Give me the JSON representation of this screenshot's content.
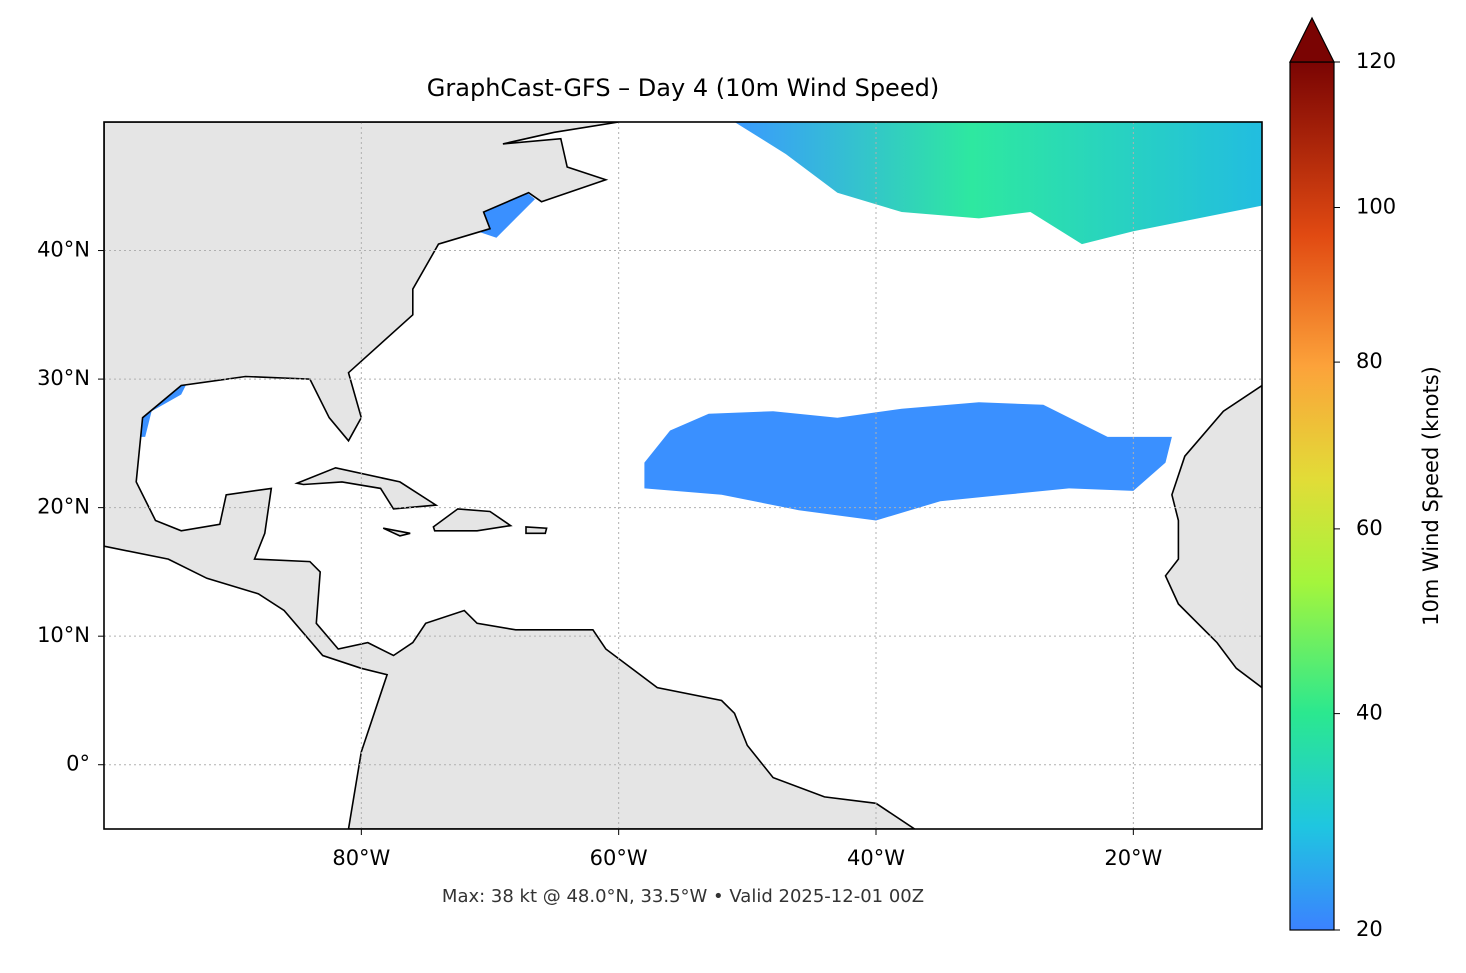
{
  "chart_data": {
    "type": "map",
    "title": "GraphCast-GFS – Day 4 (10m Wind Speed)",
    "annotation": "Max: 38 kt @ 48.0°N, 33.5°W • Valid 2025-12-01 00Z",
    "xlim": [
      -100,
      -10
    ],
    "ylim": [
      -5,
      50
    ],
    "xticks": [
      {
        "value": -80,
        "label": "80°W"
      },
      {
        "value": -60,
        "label": "60°W"
      },
      {
        "value": -40,
        "label": "40°W"
      },
      {
        "value": -20,
        "label": "20°W"
      }
    ],
    "yticks": [
      {
        "value": 0,
        "label": "0°"
      },
      {
        "value": 10,
        "label": "10°N"
      },
      {
        "value": 20,
        "label": "20°N"
      },
      {
        "value": 30,
        "label": "30°N"
      },
      {
        "value": 40,
        "label": "40°N"
      }
    ],
    "grid": true,
    "colorbar": {
      "label": "10m Wind Speed (knots)",
      "lim": [
        20,
        120
      ],
      "ticks": [
        20,
        40,
        60,
        80,
        100,
        120
      ],
      "scale": "power",
      "exponent": 0.7,
      "extend": "max"
    }
  }
}
